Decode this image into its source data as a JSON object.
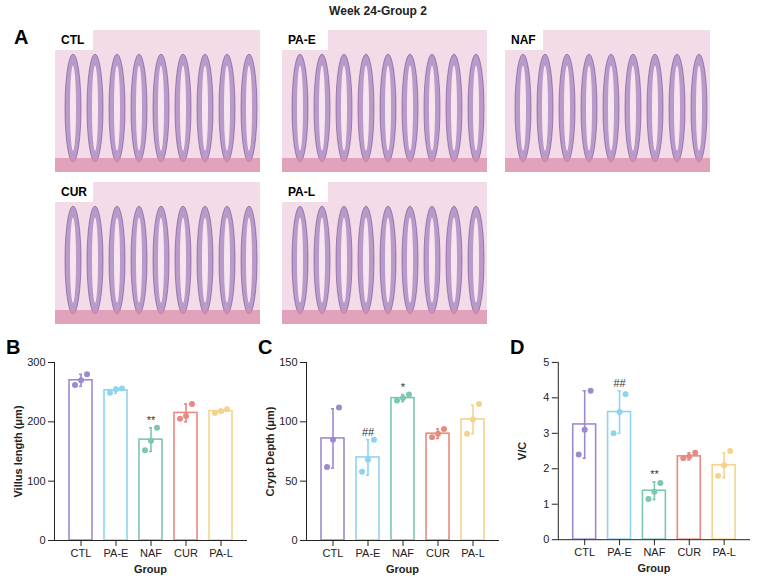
{
  "title": "Week 24-Group 2",
  "image_panel": {
    "panel": "A",
    "labels": [
      "CTL",
      "PA-E",
      "NAF",
      "CUR",
      "PA-L"
    ]
  },
  "chart_data": [
    {
      "panel": "B",
      "type": "bar",
      "x_label": "Group",
      "y_label": "Villus length (μm)",
      "categories": [
        "CTL",
        "PA-E",
        "NAF",
        "CUR",
        "PA-L"
      ],
      "values": [
        270,
        253,
        170,
        215,
        218
      ],
      "errors": [
        10,
        5,
        20,
        15,
        3
      ],
      "points": [
        [
          262,
          270,
          280
        ],
        [
          249,
          255,
          256
        ],
        [
          152,
          168,
          190
        ],
        [
          205,
          210,
          230
        ],
        [
          215,
          218,
          221
        ]
      ],
      "annotations": [
        null,
        null,
        "**",
        null,
        null
      ],
      "colors": [
        "#9c8ad0",
        "#8fd4ef",
        "#7cc7b0",
        "#e98a80",
        "#f3d48a"
      ],
      "ylim": [
        0,
        300
      ],
      "yticks": [
        0,
        100,
        200,
        300
      ]
    },
    {
      "panel": "C",
      "type": "bar",
      "x_label": "Group",
      "y_label": "Crypt Depth (μm)",
      "categories": [
        "CTL",
        "PA-E",
        "NAF",
        "CUR",
        "PA-L"
      ],
      "values": [
        86,
        70,
        120,
        90,
        102
      ],
      "errors": [
        25,
        15,
        3,
        4,
        12
      ],
      "points": [
        [
          62,
          85,
          112
        ],
        [
          58,
          68,
          85
        ],
        [
          118,
          120,
          123
        ],
        [
          87,
          90,
          94
        ],
        [
          90,
          102,
          115
        ]
      ],
      "annotations": [
        null,
        "##",
        "*",
        null,
        null
      ],
      "colors": [
        "#9c8ad0",
        "#8fd4ef",
        "#7cc7b0",
        "#e98a80",
        "#f3d48a"
      ],
      "ylim": [
        0,
        150
      ],
      "yticks": [
        0,
        50,
        100,
        150
      ]
    },
    {
      "panel": "D",
      "type": "bar",
      "x_label": "Group",
      "y_label": "V/C",
      "categories": [
        "CTL",
        "PA-E",
        "NAF",
        "CUR",
        "PA-L"
      ],
      "values": [
        3.25,
        3.6,
        1.38,
        2.35,
        2.1
      ],
      "errors": [
        0.95,
        0.6,
        0.25,
        0.1,
        0.35
      ],
      "points": [
        [
          2.4,
          3.1,
          4.2
        ],
        [
          3.0,
          3.6,
          4.1
        ],
        [
          1.15,
          1.35,
          1.6
        ],
        [
          2.3,
          2.35,
          2.45
        ],
        [
          1.8,
          2.1,
          2.5
        ]
      ],
      "annotations": [
        null,
        "##",
        "**",
        null,
        null
      ],
      "colors": [
        "#9c8ad0",
        "#8fd4ef",
        "#7cc7b0",
        "#e98a80",
        "#f3d48a"
      ],
      "ylim": [
        0,
        5
      ],
      "yticks": [
        0,
        1,
        2,
        3,
        4,
        5
      ]
    }
  ]
}
